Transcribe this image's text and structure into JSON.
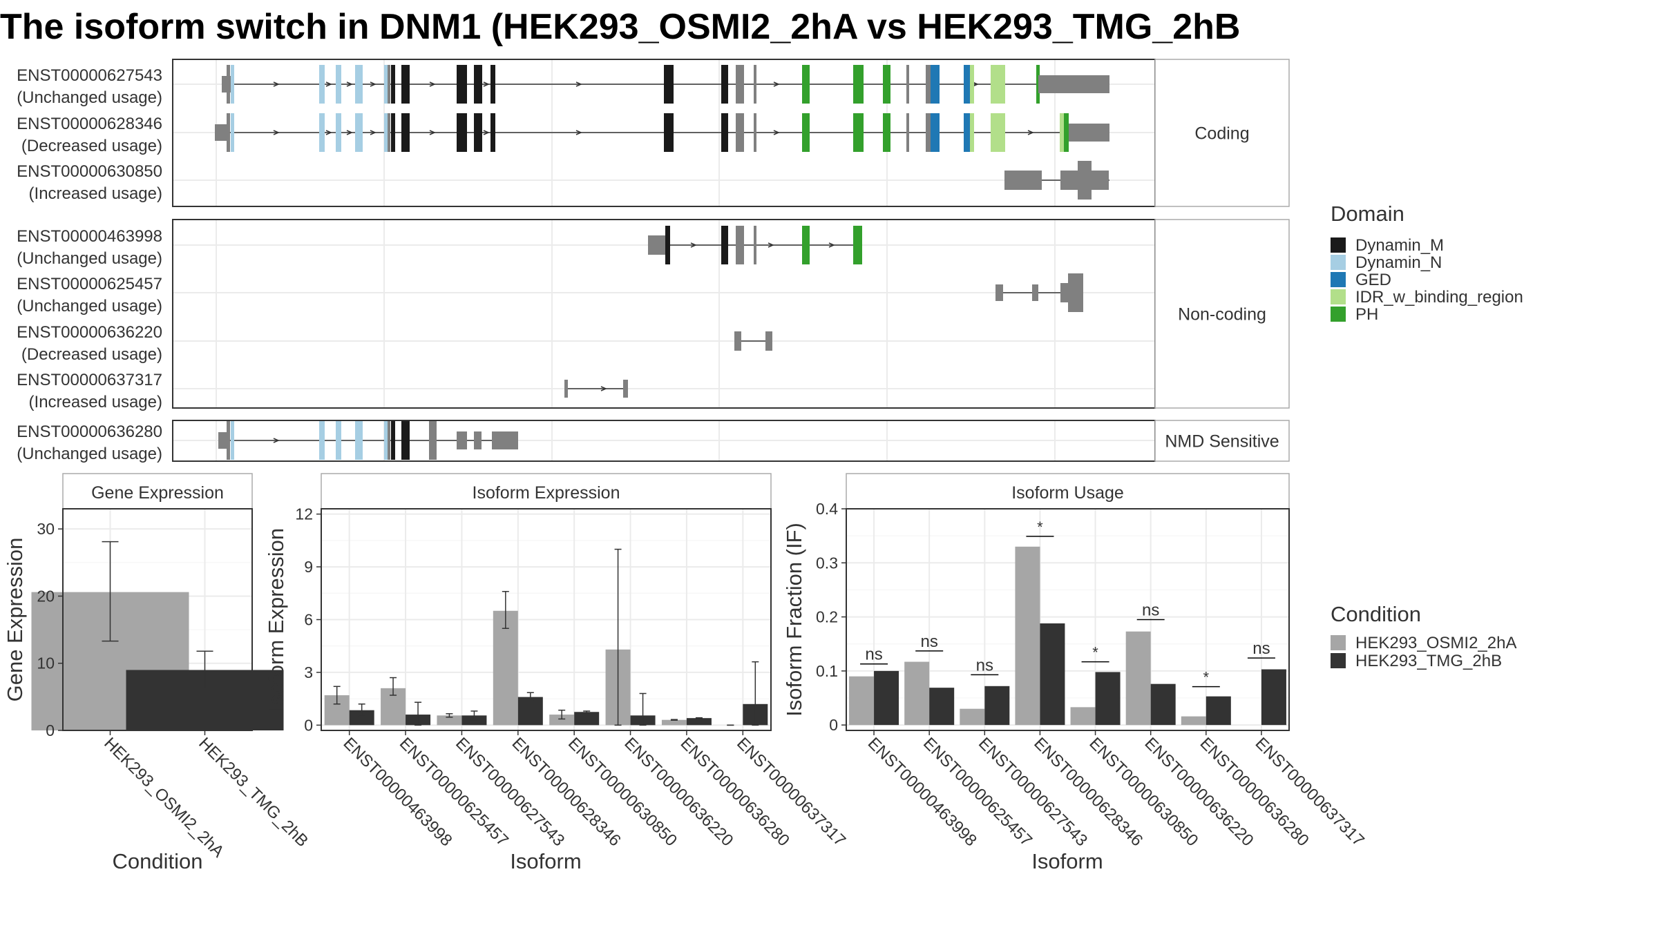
{
  "title": "The isoform switch in DNM1 (HEK293_OSMI2_2hA vs HEK293_TMG_2hB",
  "colors": {
    "Dynamin_M": "#1a1a1a",
    "Dynamin_N": "#a6cee3",
    "GED": "#1f78b4",
    "IDR_w_binding_region": "#b2df8a",
    "PH": "#33a02c",
    "noncoding_exon": "#808080",
    "cond_A": "#a6a6a6",
    "cond_B": "#333333"
  },
  "transcript_panels": [
    {
      "label": "Coding",
      "transcripts": [
        {
          "id": "ENST00000627543",
          "usage": "(Unchanged usage)"
        },
        {
          "id": "ENST00000628346",
          "usage": "(Decreased usage)"
        },
        {
          "id": "ENST00000630850",
          "usage": "(Increased usage)"
        }
      ]
    },
    {
      "label": "Non-coding",
      "transcripts": [
        {
          "id": "ENST00000463998",
          "usage": "(Unchanged usage)"
        },
        {
          "id": "ENST00000625457",
          "usage": "(Unchanged usage)"
        },
        {
          "id": "ENST00000636220",
          "usage": "(Decreased usage)"
        },
        {
          "id": "ENST00000637317",
          "usage": "(Increased usage)"
        }
      ]
    },
    {
      "label": "NMD Sensitive",
      "transcripts": [
        {
          "id": "ENST00000636280",
          "usage": "(Unchanged usage)"
        }
      ]
    }
  ],
  "domain_legend": {
    "title": "Domain",
    "items": [
      {
        "name": "Dynamin_M",
        "color": "#1a1a1a"
      },
      {
        "name": "Dynamin_N",
        "color": "#a6cee3"
      },
      {
        "name": "GED",
        "color": "#1f78b4"
      },
      {
        "name": "IDR_w_binding_region",
        "color": "#b2df8a"
      },
      {
        "name": "PH",
        "color": "#33a02c"
      }
    ]
  },
  "condition_legend": {
    "title": "Condition",
    "items": [
      {
        "name": "HEK293_OSMI2_2hA",
        "color": "#a6a6a6"
      },
      {
        "name": "HEK293_TMG_2hB",
        "color": "#333333"
      }
    ]
  },
  "chart_data": [
    {
      "type": "bar",
      "title": "Gene Expression",
      "xlabel": "Condition",
      "ylabel": "Gene Expression",
      "ylim": [
        0,
        33
      ],
      "yticks": [
        0,
        10,
        20,
        30
      ],
      "categories": [
        "HEK293_OSMI2_2hA",
        "HEK293_TMG_2hB"
      ],
      "values": [
        20.6,
        9.0
      ],
      "errors": [
        [
          13.3,
          28.1
        ],
        [
          6.3,
          11.8
        ]
      ]
    },
    {
      "type": "bar",
      "title": "Isoform Expression",
      "xlabel": "Isoform",
      "ylabel": "Isoform Expression",
      "ylim": [
        -0.3,
        12.3
      ],
      "yticks": [
        0,
        3,
        6,
        9,
        12
      ],
      "categories": [
        "ENST00000463998",
        "ENST00000625457",
        "ENST00000627543",
        "ENST00000628346",
        "ENST00000630850",
        "ENST00000636220",
        "ENST00000636280",
        "ENST00000637317"
      ],
      "series": [
        {
          "name": "HEK293_OSMI2_2hA",
          "values": [
            1.7,
            2.1,
            0.55,
            6.5,
            0.6,
            4.3,
            0.3,
            0.0
          ],
          "errors": [
            [
              1.2,
              2.2
            ],
            [
              1.7,
              2.7
            ],
            [
              0.45,
              0.65
            ],
            [
              5.5,
              7.6
            ],
            [
              0.35,
              0.85
            ],
            [
              0.0,
              10.0
            ],
            [
              0.28,
              0.32
            ],
            [
              0.0,
              0.0
            ]
          ]
        },
        {
          "name": "HEK293_TMG_2hB",
          "values": [
            0.85,
            0.6,
            0.55,
            1.6,
            0.75,
            0.55,
            0.4,
            1.2
          ],
          "errors": [
            [
              0.5,
              1.2
            ],
            [
              0.0,
              1.3
            ],
            [
              0.3,
              0.8
            ],
            [
              1.4,
              1.85
            ],
            [
              0.7,
              0.8
            ],
            [
              0.0,
              1.8
            ],
            [
              0.38,
              0.42
            ],
            [
              0.0,
              3.6
            ]
          ]
        }
      ]
    },
    {
      "type": "bar",
      "title": "Isoform Usage",
      "xlabel": "Isoform",
      "ylabel": "Isoform Fraction (IF)",
      "ylim": [
        -0.01,
        0.4
      ],
      "yticks": [
        0.0,
        0.1,
        0.2,
        0.3,
        0.4
      ],
      "categories": [
        "ENST00000463998",
        "ENST00000625457",
        "ENST00000627543",
        "ENST00000628346",
        "ENST00000630850",
        "ENST00000636220",
        "ENST00000636280",
        "ENST00000637317"
      ],
      "series": [
        {
          "name": "HEK293_OSMI2_2hA",
          "values": [
            0.09,
            0.117,
            0.03,
            0.33,
            0.033,
            0.173,
            0.016,
            0.0
          ]
        },
        {
          "name": "HEK293_TMG_2hB",
          "values": [
            0.1,
            0.069,
            0.072,
            0.188,
            0.098,
            0.076,
            0.053,
            0.103
          ]
        }
      ],
      "significance": [
        "ns",
        "ns",
        "ns",
        "*",
        "*",
        "ns",
        "*",
        "ns"
      ],
      "significance_y": [
        0.113,
        0.137,
        0.093,
        0.349,
        0.117,
        0.195,
        0.071,
        0.124
      ]
    }
  ]
}
